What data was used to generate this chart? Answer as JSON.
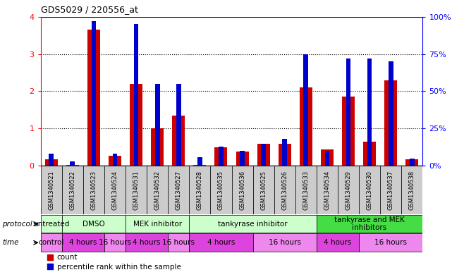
{
  "title": "GDS5029 / 220556_at",
  "samples": [
    "GSM1340521",
    "GSM1340522",
    "GSM1340523",
    "GSM1340524",
    "GSM1340531",
    "GSM1340532",
    "GSM1340527",
    "GSM1340528",
    "GSM1340535",
    "GSM1340536",
    "GSM1340525",
    "GSM1340526",
    "GSM1340533",
    "GSM1340534",
    "GSM1340529",
    "GSM1340530",
    "GSM1340537",
    "GSM1340538"
  ],
  "count_values": [
    0.18,
    0.03,
    3.65,
    0.28,
    2.2,
    1.0,
    1.35,
    0.02,
    0.5,
    0.38,
    0.6,
    0.6,
    2.1,
    0.45,
    1.85,
    0.65,
    2.3,
    0.17
  ],
  "percentile_values": [
    8,
    3,
    97,
    8,
    95,
    55,
    55,
    6,
    13,
    10,
    15,
    18,
    75,
    10,
    72,
    72,
    70,
    5
  ],
  "ylim_left": [
    0,
    4
  ],
  "ylim_right": [
    0,
    100
  ],
  "yticks_left": [
    0,
    1,
    2,
    3,
    4
  ],
  "yticks_right": [
    0,
    25,
    50,
    75,
    100
  ],
  "protocol_groups": [
    {
      "label": "untreated",
      "start": 0,
      "end": 2,
      "color": "#ccffcc"
    },
    {
      "label": "DMSO",
      "start": 2,
      "end": 8,
      "color": "#ccffcc"
    },
    {
      "label": "MEK inhibitor",
      "start": 8,
      "end": 14,
      "color": "#ccffcc"
    },
    {
      "label": "tankyrase inhibitor",
      "start": 14,
      "end": 26,
      "color": "#ccffcc"
    },
    {
      "label": "tankyrase and MEK\ninhibitors",
      "start": 26,
      "end": 36,
      "color": "#44dd44"
    }
  ],
  "time_groups": [
    {
      "label": "control",
      "start": 0,
      "end": 2,
      "color": "#ee88ee"
    },
    {
      "label": "4 hours",
      "start": 2,
      "end": 6,
      "color": "#cc44cc"
    },
    {
      "label": "16 hours",
      "start": 6,
      "end": 8,
      "color": "#ee88ee"
    },
    {
      "label": "4 hours",
      "start": 8,
      "end": 12,
      "color": "#cc44cc"
    },
    {
      "label": "16 hours",
      "start": 12,
      "end": 14,
      "color": "#ee88ee"
    },
    {
      "label": "4 hours",
      "start": 14,
      "end": 20,
      "color": "#cc44cc"
    },
    {
      "label": "16 hours",
      "start": 20,
      "end": 26,
      "color": "#ee88ee"
    },
    {
      "label": "4 hours",
      "start": 26,
      "end": 30,
      "color": "#cc44cc"
    },
    {
      "label": "16 hours",
      "start": 30,
      "end": 36,
      "color": "#ee88ee"
    }
  ],
  "bar_color_red": "#cc0000",
  "bar_color_blue": "#0000cc",
  "bg_color": "#ffffff",
  "grid_dotted_color": "#000000",
  "spine_color": "#000000",
  "sample_bg_color": "#cccccc"
}
